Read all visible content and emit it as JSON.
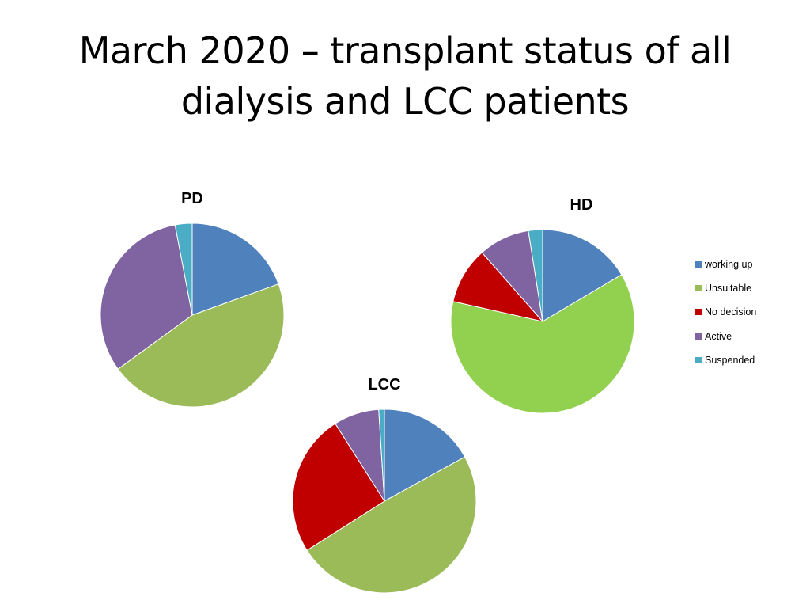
{
  "slide": {
    "title_line_1": "March 2020 – transplant status of all",
    "title_line_2": "dialysis and LCC patients"
  },
  "legend": [
    {
      "label": "working up",
      "color": "#4f81bd"
    },
    {
      "label": "Unsuitable",
      "color": "#9bbb59"
    },
    {
      "label": "No decision",
      "color": "#c00000"
    },
    {
      "label": "Active",
      "color": "#8064a2"
    },
    {
      "label": "Suspended",
      "color": "#4bacc6"
    }
  ],
  "chart_data": [
    {
      "type": "pie",
      "title": "PD",
      "categories": [
        "working up",
        "Unsuitable",
        "No decision",
        "Active",
        "Suspended"
      ],
      "values": [
        19.5,
        45.5,
        0,
        32,
        3
      ],
      "colors": [
        "#4f81bd",
        "#9bbb59",
        "#c00000",
        "#8064a2",
        "#4bacc6"
      ]
    },
    {
      "type": "pie",
      "title": "HD",
      "categories": [
        "working up",
        "Unsuitable",
        "No decision",
        "Active",
        "Suspended"
      ],
      "values": [
        16.5,
        62,
        10,
        9,
        2.5
      ],
      "colors": [
        "#4f81bd",
        "#92d050",
        "#c00000",
        "#8064a2",
        "#4bacc6"
      ]
    },
    {
      "type": "pie",
      "title": "LCC",
      "categories": [
        "working up",
        "Unsuitable",
        "No decision",
        "Active",
        "Suspended"
      ],
      "values": [
        17,
        49,
        25,
        8,
        1
      ],
      "colors": [
        "#4f81bd",
        "#9bbb59",
        "#c00000",
        "#8064a2",
        "#4bacc6"
      ]
    }
  ]
}
